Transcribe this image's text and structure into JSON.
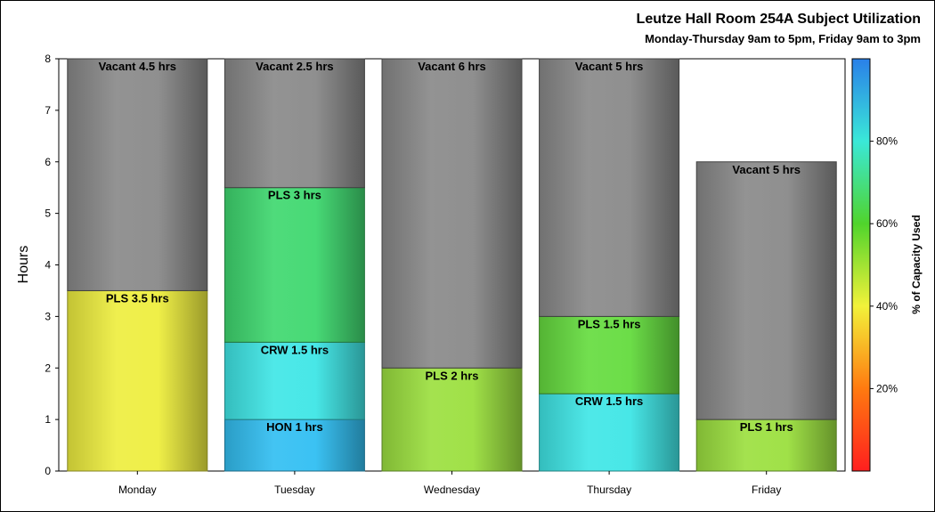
{
  "chart_data": {
    "type": "bar",
    "stacked": true,
    "title": "Leutze Hall Room 254A Subject Utilization",
    "subtitle": "Monday-Thursday 9am to 5pm, Friday 9am to 3pm",
    "ylabel": "Hours",
    "xlabel": "",
    "ylim": [
      0,
      8
    ],
    "yticks": [
      0,
      1,
      2,
      3,
      4,
      5,
      6,
      7,
      8
    ],
    "categories": [
      "Monday",
      "Tuesday",
      "Wednesday",
      "Thursday",
      "Friday"
    ],
    "bars": [
      {
        "category": "Monday",
        "segments": [
          {
            "label": "PLS 3.5 hrs",
            "value": 3.5,
            "color": "#eeee40"
          },
          {
            "label": "Vacant 4.5 hrs",
            "value": 4.5,
            "color": "#8a8a8a"
          }
        ]
      },
      {
        "category": "Tuesday",
        "segments": [
          {
            "label": "HON 1 hrs",
            "value": 1,
            "color": "#33bff2"
          },
          {
            "label": "CRW 1.5 hrs",
            "value": 1.5,
            "color": "#40e6e6"
          },
          {
            "label": "PLS 3 hrs",
            "value": 3,
            "color": "#40d870"
          },
          {
            "label": "Vacant 2.5 hrs",
            "value": 2.5,
            "color": "#8a8a8a"
          }
        ]
      },
      {
        "category": "Wednesday",
        "segments": [
          {
            "label": "PLS 2 hrs",
            "value": 2,
            "color": "#9ce040"
          },
          {
            "label": "Vacant 6 hrs",
            "value": 6,
            "color": "#8a8a8a"
          }
        ]
      },
      {
        "category": "Thursday",
        "segments": [
          {
            "label": "CRW 1.5 hrs",
            "value": 1.5,
            "color": "#40e6e6"
          },
          {
            "label": "PLS 1.5 hrs",
            "value": 1.5,
            "color": "#66dc40"
          },
          {
            "label": "Vacant 5 hrs",
            "value": 5,
            "color": "#8a8a8a"
          }
        ]
      },
      {
        "category": "Friday",
        "segments": [
          {
            "label": "PLS 1 hrs",
            "value": 1,
            "color": "#9ce040"
          },
          {
            "label": "Vacant 5 hrs",
            "value": 5,
            "color": "#8a8a8a"
          }
        ]
      }
    ],
    "colorbar": {
      "label": "% of Capacity Used",
      "ticks": [
        "20%",
        "40%",
        "60%",
        "80%"
      ],
      "tick_values": [
        20,
        40,
        60,
        80
      ],
      "range": [
        0,
        100
      ],
      "gradient": [
        "#ff1f1f",
        "#ff7a10",
        "#f2f23a",
        "#50d42c",
        "#3ae8d8",
        "#2a80e8"
      ]
    },
    "grid": false,
    "legend": "colorbar-right"
  }
}
